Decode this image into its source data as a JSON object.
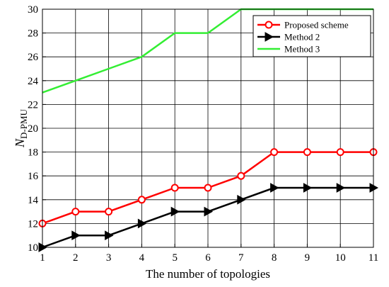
{
  "chart_data": {
    "type": "line",
    "xlabel": "The number of topologies",
    "ylabel_main": "N",
    "ylabel_sub": "D-PMU",
    "xlim": [
      1,
      11
    ],
    "ylim": [
      10,
      30
    ],
    "xticks": [
      1,
      2,
      3,
      4,
      5,
      6,
      7,
      8,
      9,
      10,
      11
    ],
    "yticks": [
      10,
      12,
      14,
      16,
      18,
      20,
      22,
      24,
      26,
      28,
      30
    ],
    "grid": true,
    "legend_position": "top-right",
    "x": [
      1,
      2,
      3,
      4,
      5,
      6,
      7,
      8,
      9,
      10,
      11
    ],
    "series": [
      {
        "name": "Proposed scheme",
        "color": "#ff0000",
        "marker": "circle",
        "values": [
          12,
          13,
          13,
          14,
          15,
          15,
          16,
          18,
          18,
          18,
          18
        ]
      },
      {
        "name": "Method 2",
        "color": "#000000",
        "marker": "triangle-right",
        "values": [
          10,
          11,
          11,
          12,
          13,
          13,
          14,
          15,
          15,
          15,
          15
        ]
      },
      {
        "name": "Method 3",
        "color": "#33ee33",
        "marker": "none",
        "values": [
          23,
          24,
          25,
          26,
          28,
          28,
          30,
          30,
          30,
          30,
          30
        ]
      }
    ]
  }
}
